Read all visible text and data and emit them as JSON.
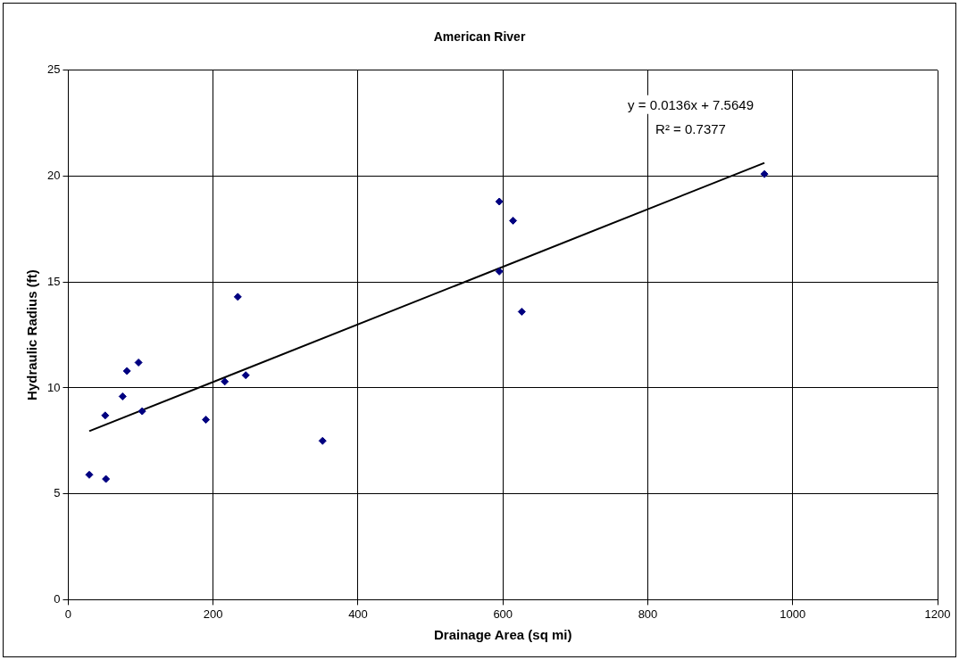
{
  "chart_data": {
    "type": "scatter",
    "title": "American River",
    "xlabel": "Drainage Area (sq mi)",
    "ylabel": "Hydraulic Radius (ft)",
    "xlim": [
      0,
      1200
    ],
    "xticks": [
      0,
      200,
      400,
      600,
      800,
      1000,
      1200
    ],
    "ylim": [
      0,
      25
    ],
    "yticks": [
      0,
      5,
      10,
      15,
      20,
      25
    ],
    "grid": true,
    "series": [
      {
        "marker": "diamond",
        "color": "#000080",
        "x": [
          29,
          52,
          51,
          75,
          81,
          97,
          102,
          190,
          216,
          234,
          245,
          351,
          595,
          595,
          614,
          626,
          961
        ],
        "values": [
          5.9,
          5.7,
          8.7,
          9.6,
          10.8,
          11.2,
          8.9,
          8.5,
          10.3,
          14.3,
          10.6,
          7.5,
          18.8,
          15.5,
          17.9,
          13.6,
          20.1
        ]
      },
      {
        "type": "line",
        "marker": "none",
        "color": "#000000",
        "x": [
          29,
          961
        ],
        "values": [
          7.96,
          20.63
        ]
      }
    ],
    "annotations": [
      "y = 0.0136x + 7.5649",
      "R² = 0.7377"
    ]
  }
}
